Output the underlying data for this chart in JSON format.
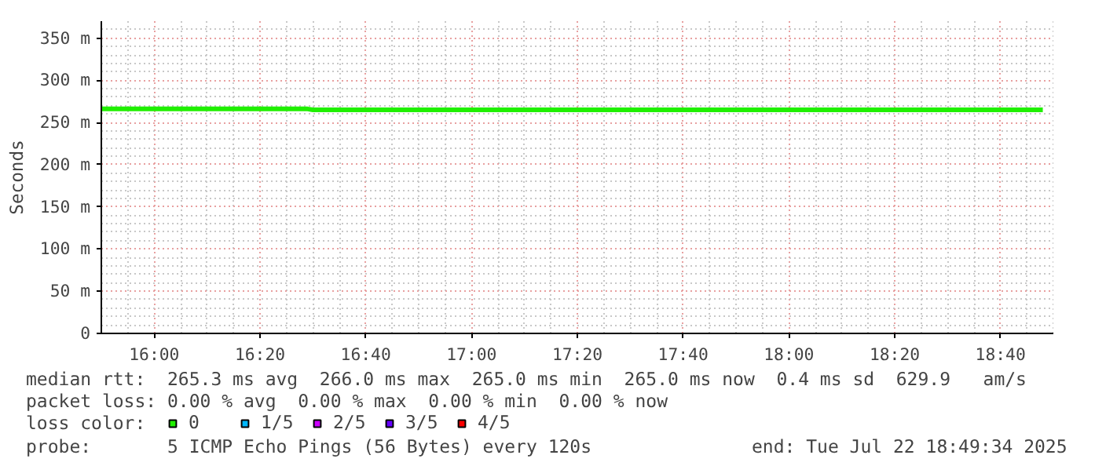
{
  "chart_data": {
    "type": "line",
    "ylabel": "Seconds",
    "legend_title": "loss color:",
    "xlim": [
      15.8333,
      18.8333
    ],
    "xticks": [
      {
        "value": 16.0,
        "label": "16:00"
      },
      {
        "value": 16.3333,
        "label": "16:20"
      },
      {
        "value": 16.6667,
        "label": "16:40"
      },
      {
        "value": 17.0,
        "label": "17:00"
      },
      {
        "value": 17.3333,
        "label": "17:20"
      },
      {
        "value": 17.6667,
        "label": "17:40"
      },
      {
        "value": 18.0,
        "label": "18:00"
      },
      {
        "value": 18.3333,
        "label": "18:20"
      },
      {
        "value": 18.6667,
        "label": "18:40"
      }
    ],
    "ylim": [
      0,
      370
    ],
    "yticks": [
      0,
      {
        "value": 50,
        "label": "50 m"
      },
      {
        "value": 100,
        "label": "100 m"
      },
      {
        "value": 150,
        "label": "150 m"
      },
      {
        "value": 200,
        "label": "200 m"
      },
      {
        "value": 250,
        "label": "250 m"
      },
      {
        "value": 300,
        "label": "300 m"
      },
      {
        "value": 350,
        "label": "350 m"
      }
    ],
    "grid": true,
    "legend": "bottom",
    "series": [
      {
        "name": "0",
        "color": "#20f000",
        "x": [
          15.8333,
          16.4833,
          16.5,
          18.8
        ],
        "values": [
          266,
          266,
          265,
          265
        ]
      },
      {
        "name": "1/5",
        "color": "#00b8ff"
      },
      {
        "name": "2/5",
        "color": "#cc00ff"
      },
      {
        "name": "3/5",
        "color": "#6600ff"
      },
      {
        "name": "4/5",
        "color": "#ff0000"
      }
    ],
    "annotations": [
      "median rtt:  265.3 ms avg  266.0 ms max  265.0 ms min  265.0 ms now  0.4 ms sd  629.9   am/s",
      "packet loss: 0.00 % avg  0.00 % max  0.00 % min  0.00 % now",
      "probe:       5 ICMP Echo Pings (56 Bytes) every 120s",
      "end: Tue Jul 22 18:49:34 2025"
    ]
  }
}
